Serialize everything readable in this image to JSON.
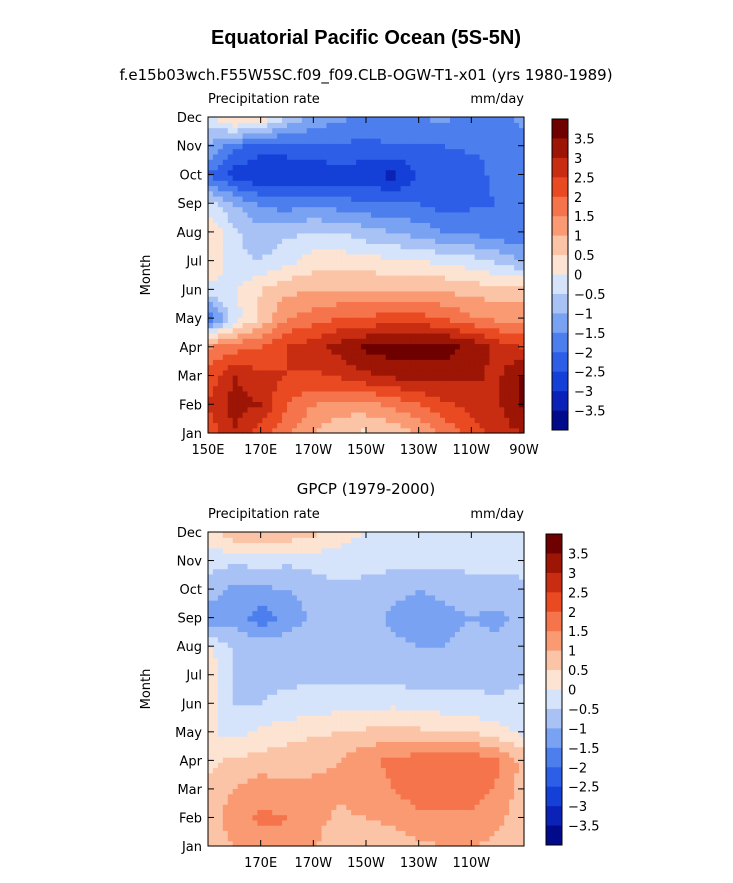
{
  "title": "Equatorial Pacific Ocean (5S-5N)",
  "chart_data": [
    {
      "type": "heatmap",
      "title": "f.e15b03wch.F55W5SC.f09_f09.CLB-OGW-T1-x01 (yrs 1980-1989)",
      "left_label": "Precipitation rate",
      "right_label": "mm/day",
      "ylabel": "Month",
      "x_ticks": [
        "150E",
        "170E",
        "170W",
        "150W",
        "130W",
        "110W",
        "90W"
      ],
      "y_ticks": [
        "Jan",
        "Feb",
        "Mar",
        "Apr",
        "May",
        "Jun",
        "Jul",
        "Aug",
        "Sep",
        "Oct",
        "Nov",
        "Dec"
      ],
      "xlim": [
        150,
        270
      ],
      "colorbar": {
        "labels": [
          "3.5",
          "3",
          "2.5",
          "2",
          "1.5",
          "1",
          "0.5",
          "0",
          "-0.5",
          "-1",
          "-1.5",
          "-2",
          "-2.5",
          "-3",
          "-3.5"
        ],
        "levels": [
          -3.5,
          -3,
          -2.5,
          -2,
          -1.5,
          -1,
          -0.5,
          0,
          0.5,
          1,
          1.5,
          2,
          2.5,
          3,
          3.5
        ]
      },
      "x_nodes": [
        150,
        160,
        170,
        180,
        190,
        200,
        210,
        220,
        230,
        240,
        250,
        260,
        270
      ],
      "months": [
        "Jan",
        "Feb",
        "Mar",
        "Apr",
        "May",
        "Jun",
        "Jul",
        "Aug",
        "Sep",
        "Oct",
        "Nov",
        "Dec"
      ],
      "z": [
        [
          2.2,
          3.0,
          2.2,
          1.6,
          1.0,
          0.5,
          0.4,
          0.6,
          1.0,
          1.6,
          2.2,
          2.8,
          3.0
        ],
        [
          2.5,
          3.2,
          3.0,
          2.0,
          1.5,
          1.3,
          1.3,
          1.6,
          2.0,
          2.4,
          2.7,
          2.9,
          3.6
        ],
        [
          2.2,
          3.0,
          2.6,
          2.5,
          2.4,
          2.6,
          2.9,
          3.1,
          3.2,
          3.2,
          3.1,
          2.9,
          3.6
        ],
        [
          1.5,
          1.8,
          2.0,
          2.5,
          2.8,
          3.2,
          3.6,
          3.8,
          3.8,
          3.7,
          3.4,
          2.8,
          2.5
        ],
        [
          -2.0,
          -0.3,
          0.6,
          1.5,
          1.8,
          2.0,
          2.1,
          2.2,
          2.2,
          2.0,
          1.6,
          1.4,
          1.3
        ],
        [
          -0.2,
          0.0,
          0.5,
          0.9,
          0.9,
          1.0,
          1.0,
          1.0,
          1.0,
          0.9,
          0.8,
          0.7,
          0.7
        ],
        [
          0.6,
          -0.4,
          -0.5,
          -0.2,
          0.3,
          0.3,
          0.2,
          0.1,
          0.0,
          -0.1,
          -0.3,
          -0.6,
          -1.0
        ],
        [
          0.5,
          -0.4,
          -0.8,
          -0.6,
          -0.5,
          -0.5,
          -0.8,
          -1.0,
          -1.2,
          -1.5,
          -1.6,
          -1.8,
          -2.0
        ],
        [
          -0.2,
          -1.0,
          -1.6,
          -1.8,
          -1.6,
          -1.8,
          -1.9,
          -2.0,
          -2.0,
          -2.3,
          -2.1,
          -2.0,
          -2.0
        ],
        [
          -2.0,
          -2.8,
          -3.0,
          -3.0,
          -3.0,
          -2.8,
          -2.8,
          -3.2,
          -2.5,
          -2.4,
          -2.3,
          -1.8,
          -2.0
        ],
        [
          -1.0,
          -1.8,
          -2.3,
          -2.2,
          -2.0,
          -2.0,
          -2.2,
          -2.0,
          -2.0,
          -2.0,
          -1.9,
          -2.0,
          -1.8
        ],
        [
          -0.3,
          0.7,
          0.5,
          -0.6,
          -1.2,
          -1.4,
          -1.6,
          -1.5,
          -1.5,
          -1.4,
          -1.6,
          -1.8,
          -1.2
        ]
      ]
    },
    {
      "type": "heatmap",
      "title": "GPCP (1979-2000)",
      "left_label": "Precipitation rate",
      "right_label": "mm/day",
      "ylabel": "Month",
      "x_ticks": [
        "170E",
        "170W",
        "150W",
        "130W",
        "110W"
      ],
      "y_ticks": [
        "Jan",
        "Feb",
        "Mar",
        "Apr",
        "May",
        "Jun",
        "Jul",
        "Aug",
        "Sep",
        "Oct",
        "Nov",
        "Dec"
      ],
      "xlim": [
        150,
        270
      ],
      "colorbar": {
        "labels": [
          "3.5",
          "3",
          "2.5",
          "2",
          "1.5",
          "1",
          "0.5",
          "0",
          "-0.5",
          "-1",
          "-1.5",
          "-2",
          "-2.5",
          "-3",
          "-3.5"
        ],
        "levels": [
          -3.5,
          -3,
          -2.5,
          -2,
          -1.5,
          -1,
          -0.5,
          0,
          0.5,
          1,
          1.5,
          2,
          2.5,
          3,
          3.5
        ]
      },
      "x_nodes": [
        150,
        160,
        170,
        180,
        190,
        200,
        210,
        220,
        230,
        240,
        250,
        260,
        270
      ],
      "months": [
        "Jan",
        "Feb",
        "Mar",
        "Apr",
        "May",
        "Jun",
        "Jul",
        "Aug",
        "Sep",
        "Oct",
        "Nov",
        "Dec"
      ],
      "z": [
        [
          0.7,
          1.0,
          1.3,
          1.4,
          1.1,
          0.5,
          0.5,
          0.6,
          0.9,
          1.0,
          1.0,
          0.9,
          0.7
        ],
        [
          0.7,
          1.3,
          1.6,
          1.5,
          1.2,
          0.9,
          1.0,
          1.2,
          1.4,
          1.4,
          1.4,
          1.1,
          0.7
        ],
        [
          0.6,
          1.0,
          1.3,
          1.1,
          1.1,
          1.1,
          1.3,
          1.5,
          1.7,
          1.8,
          1.8,
          1.4,
          0.8
        ],
        [
          0.4,
          0.6,
          0.7,
          0.8,
          0.9,
          1.0,
          1.4,
          1.6,
          1.8,
          1.9,
          1.9,
          1.6,
          0.8
        ],
        [
          0.1,
          -0.2,
          0.1,
          0.3,
          0.4,
          0.5,
          0.6,
          0.7,
          0.6,
          0.6,
          0.5,
          0.2,
          -0.1
        ],
        [
          0.4,
          -0.5,
          -0.5,
          -0.4,
          -0.3,
          -0.2,
          -0.2,
          -0.1,
          -0.2,
          -0.3,
          -0.4,
          -0.4,
          -0.3
        ],
        [
          0.5,
          -0.6,
          -0.6,
          -0.6,
          -0.6,
          -0.6,
          -0.6,
          -0.7,
          -0.8,
          -0.7,
          -0.6,
          -0.7,
          -0.6
        ],
        [
          0.0,
          -0.6,
          -0.7,
          -0.7,
          -0.6,
          -0.6,
          -0.7,
          -0.9,
          -1.0,
          -1.0,
          -0.9,
          -0.9,
          -0.8
        ],
        [
          -1.3,
          -1.2,
          -1.8,
          -1.3,
          -0.9,
          -0.7,
          -0.8,
          -1.1,
          -1.2,
          -1.1,
          -1.0,
          -1.1,
          -0.9
        ],
        [
          -0.7,
          -1.2,
          -1.1,
          -1.0,
          -0.8,
          -0.6,
          -0.7,
          -0.9,
          -1.0,
          -0.9,
          -0.8,
          -0.8,
          -0.7
        ],
        [
          -0.3,
          -0.4,
          -0.3,
          -0.4,
          -0.3,
          -0.2,
          -0.3,
          -0.3,
          -0.3,
          -0.3,
          -0.3,
          -0.3,
          -0.2
        ],
        [
          0.3,
          0.9,
          1.1,
          0.9,
          0.6,
          0.2,
          0.0,
          -0.1,
          -0.1,
          -0.1,
          -0.1,
          -0.1,
          -0.1
        ]
      ]
    }
  ],
  "colors": {
    "palette": [
      "#000a8a",
      "#0a22b8",
      "#1540d8",
      "#2c5ee8",
      "#4c7eee",
      "#7aa2f2",
      "#a8c2f5",
      "#d5e4fb",
      "#fde3d2",
      "#fcc4a6",
      "#f99a73",
      "#f5744c",
      "#ea4a22",
      "#c82d12",
      "#9c1505",
      "#6e0000"
    ]
  }
}
